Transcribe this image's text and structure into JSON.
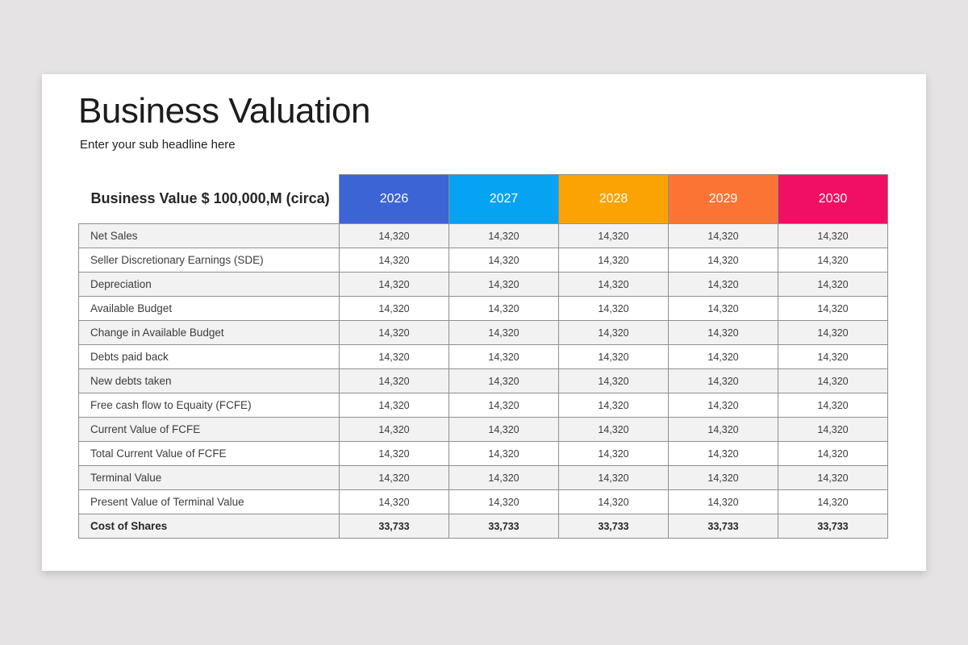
{
  "slide": {
    "title": "Business Valuation",
    "subtitle": "Enter your sub headline here"
  },
  "table": {
    "header_label": "Business Value $ 100,000,M (circa)",
    "columns": [
      {
        "year": "2026",
        "color": "#3c64d4"
      },
      {
        "year": "2027",
        "color": "#06a3f2"
      },
      {
        "year": "2028",
        "color": "#fba303"
      },
      {
        "year": "2029",
        "color": "#fc7434"
      },
      {
        "year": "2030",
        "color": "#f00f63"
      }
    ],
    "rows": [
      {
        "label": "Net Sales",
        "values": [
          "14,320",
          "14,320",
          "14,320",
          "14,320",
          "14,320"
        ],
        "bold": false
      },
      {
        "label": "Seller Discretionary Earnings (SDE)",
        "values": [
          "14,320",
          "14,320",
          "14,320",
          "14,320",
          "14,320"
        ],
        "bold": false
      },
      {
        "label": "Depreciation",
        "values": [
          "14,320",
          "14,320",
          "14,320",
          "14,320",
          "14,320"
        ],
        "bold": false
      },
      {
        "label": "Available Budget",
        "values": [
          "14,320",
          "14,320",
          "14,320",
          "14,320",
          "14,320"
        ],
        "bold": false
      },
      {
        "label": "Change in Available Budget",
        "values": [
          "14,320",
          "14,320",
          "14,320",
          "14,320",
          "14,320"
        ],
        "bold": false
      },
      {
        "label": "Debts paid back",
        "values": [
          "14,320",
          "14,320",
          "14,320",
          "14,320",
          "14,320"
        ],
        "bold": false
      },
      {
        "label": "New debts taken",
        "values": [
          "14,320",
          "14,320",
          "14,320",
          "14,320",
          "14,320"
        ],
        "bold": false
      },
      {
        "label": "Free cash flow to Equaity (FCFE)",
        "values": [
          "14,320",
          "14,320",
          "14,320",
          "14,320",
          "14,320"
        ],
        "bold": false
      },
      {
        "label": "Current Value of FCFE",
        "values": [
          "14,320",
          "14,320",
          "14,320",
          "14,320",
          "14,320"
        ],
        "bold": false
      },
      {
        "label": "Total Current Value of FCFE",
        "values": [
          "14,320",
          "14,320",
          "14,320",
          "14,320",
          "14,320"
        ],
        "bold": false
      },
      {
        "label": "Terminal Value",
        "values": [
          "14,320",
          "14,320",
          "14,320",
          "14,320",
          "14,320"
        ],
        "bold": false
      },
      {
        "label": "Present Value of Terminal Value",
        "values": [
          "14,320",
          "14,320",
          "14,320",
          "14,320",
          "14,320"
        ],
        "bold": false
      },
      {
        "label": "Cost of Shares",
        "values": [
          "33,733",
          "33,733",
          "33,733",
          "33,733",
          "33,733"
        ],
        "bold": true
      }
    ]
  },
  "colors": {
    "page_background": "#e5e3e3",
    "slide_background": "#ffffff",
    "table_border": "#8f8f8f",
    "row_stripe": "#f2f2f2"
  }
}
